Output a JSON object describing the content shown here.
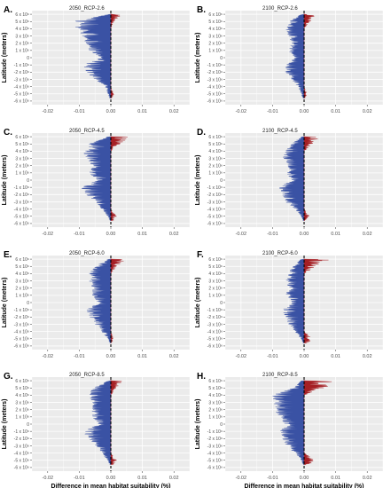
{
  "figure": {
    "ylabel": "Latitude (meters)",
    "xlabel": "Difference in mean habitat suitability (%)",
    "panel_letters": [
      "A.",
      "B.",
      "C.",
      "D.",
      "E.",
      "F.",
      "G.",
      "H."
    ],
    "x_ticks": [
      "-0.02",
      "-0.01",
      "0.00",
      "0.01",
      "0.02"
    ],
    "y_ticks": [
      "6 x 10⁶",
      "5 x 10⁶",
      "4 x 10⁶",
      "3 x 10⁶",
      "2 x 10⁶",
      "1 x 10⁶",
      "0",
      "-1 x 10⁶",
      "-2 x 10⁶",
      "-3 x 10⁶",
      "-4 x 10⁶",
      "-5 x 10⁶",
      "-6 x 10⁶"
    ],
    "colors": {
      "negative": "#3a52a4",
      "positive": "#a51f24",
      "panel_bg": "#ebebeb",
      "grid": "#ffffff"
    }
  },
  "chart_data": [
    {
      "type": "area",
      "panel": "A.",
      "title": "2050_RCP-2.6",
      "xlim": [
        -0.025,
        0.025
      ],
      "ylim": [
        -6500000,
        6500000
      ],
      "lat": [
        6,
        5,
        4,
        3,
        2,
        1,
        0,
        -1,
        -2,
        -3,
        -4,
        -5,
        -6
      ],
      "neg_min": [
        -0.001,
        -0.012,
        -0.011,
        -0.009,
        -0.008,
        -0.007,
        -0.003,
        -0.009,
        -0.008,
        -0.005,
        -0.002,
        -0.001,
        0
      ],
      "pos_max": [
        0.004,
        0.001,
        0,
        0,
        0,
        0,
        0,
        0,
        0,
        0,
        0,
        0.001,
        0
      ]
    },
    {
      "type": "area",
      "panel": "B.",
      "title": "2100_RCP-2.6",
      "xlim": [
        -0.025,
        0.025
      ],
      "ylim": [
        -6500000,
        6500000
      ],
      "lat": [
        6,
        5,
        4,
        3,
        2,
        1,
        0,
        -1,
        -2,
        -3,
        -4,
        -5,
        -6
      ],
      "neg_min": [
        -0.001,
        -0.005,
        -0.006,
        -0.005,
        -0.004,
        -0.005,
        -0.003,
        -0.006,
        -0.006,
        -0.004,
        -0.002,
        -0.001,
        0
      ],
      "pos_max": [
        0.004,
        0.002,
        0,
        0,
        0,
        0,
        0,
        0,
        0,
        0,
        0,
        0.001,
        0
      ]
    },
    {
      "type": "area",
      "panel": "C.",
      "title": "2050_RCP-4.5",
      "xlim": [
        -0.025,
        0.025
      ],
      "ylim": [
        -6500000,
        6500000
      ],
      "lat": [
        6,
        5,
        4,
        3,
        2,
        1,
        0,
        -1,
        -2,
        -3,
        -4,
        -5,
        -6
      ],
      "neg_min": [
        -0.001,
        -0.007,
        -0.009,
        -0.008,
        -0.006,
        -0.007,
        -0.005,
        -0.01,
        -0.008,
        -0.005,
        -0.003,
        -0.001,
        0
      ],
      "pos_max": [
        0.006,
        0.003,
        0,
        0,
        0,
        0,
        0,
        0,
        0,
        0,
        0,
        0.002,
        0
      ]
    },
    {
      "type": "area",
      "panel": "D.",
      "title": "2100_RCP-4.5",
      "xlim": [
        -0.025,
        0.025
      ],
      "ylim": [
        -6500000,
        6500000
      ],
      "lat": [
        6,
        5,
        4,
        3,
        2,
        1,
        0,
        -1,
        -2,
        -3,
        -4,
        -5,
        -6
      ],
      "neg_min": [
        -0.001,
        -0.004,
        -0.006,
        -0.007,
        -0.005,
        -0.006,
        -0.004,
        -0.008,
        -0.007,
        -0.006,
        -0.003,
        -0.001,
        0
      ],
      "pos_max": [
        0.005,
        0.003,
        0,
        0,
        0,
        0,
        0,
        0,
        0,
        0,
        0,
        0.002,
        0
      ]
    },
    {
      "type": "area",
      "panel": "E.",
      "title": "2050_RCP-6.0",
      "xlim": [
        -0.025,
        0.025
      ],
      "ylim": [
        -6500000,
        6500000
      ],
      "lat": [
        6,
        5,
        4,
        3,
        2,
        1,
        0,
        -1,
        -2,
        -3,
        -4,
        -5,
        -6
      ],
      "neg_min": [
        -0.001,
        -0.005,
        -0.007,
        -0.007,
        -0.006,
        -0.006,
        -0.004,
        -0.008,
        -0.007,
        -0.005,
        -0.003,
        -0.001,
        0
      ],
      "pos_max": [
        0.005,
        0.002,
        0,
        0,
        0,
        0,
        0,
        0,
        0,
        0,
        0,
        0.001,
        0
      ]
    },
    {
      "type": "area",
      "panel": "F.",
      "title": "2100_RCP-6.0",
      "xlim": [
        -0.025,
        0.025
      ],
      "ylim": [
        -6500000,
        6500000
      ],
      "lat": [
        6,
        5,
        4,
        3,
        2,
        1,
        0,
        -1,
        -2,
        -3,
        -4,
        -5,
        -6
      ],
      "neg_min": [
        -0.001,
        -0.004,
        -0.005,
        -0.006,
        -0.005,
        -0.006,
        -0.004,
        -0.007,
        -0.006,
        -0.005,
        -0.003,
        -0.001,
        0
      ],
      "pos_max": [
        0.009,
        0.004,
        0,
        0,
        0,
        0,
        0,
        0,
        0,
        0,
        0,
        0.003,
        0
      ]
    },
    {
      "type": "area",
      "panel": "G.",
      "title": "2050_RCP-8.5",
      "xlim": [
        -0.025,
        0.025
      ],
      "ylim": [
        -6500000,
        6500000
      ],
      "lat": [
        6,
        5,
        4,
        3,
        2,
        1,
        0,
        -1,
        -2,
        -3,
        -4,
        -5,
        -6
      ],
      "neg_min": [
        -0.001,
        -0.006,
        -0.007,
        -0.006,
        -0.006,
        -0.006,
        -0.004,
        -0.009,
        -0.007,
        -0.005,
        -0.003,
        -0.001,
        0
      ],
      "pos_max": [
        0.004,
        0.002,
        0,
        0,
        0,
        0,
        0,
        0,
        0,
        0,
        0,
        0.002,
        0
      ]
    },
    {
      "type": "area",
      "panel": "H.",
      "title": "2100_RCP-8.5",
      "xlim": [
        -0.025,
        0.025
      ],
      "ylim": [
        -6500000,
        6500000
      ],
      "lat": [
        6,
        5,
        4,
        3,
        2,
        1,
        0,
        -1,
        -2,
        -3,
        -4,
        -5,
        -6
      ],
      "neg_min": [
        -0.001,
        -0.004,
        -0.01,
        -0.01,
        -0.009,
        -0.009,
        -0.006,
        -0.008,
        -0.007,
        -0.006,
        -0.003,
        -0.001,
        0
      ],
      "pos_max": [
        0.012,
        0.007,
        0,
        0,
        0,
        0,
        0,
        0,
        0,
        0,
        0,
        0.004,
        0
      ]
    }
  ]
}
